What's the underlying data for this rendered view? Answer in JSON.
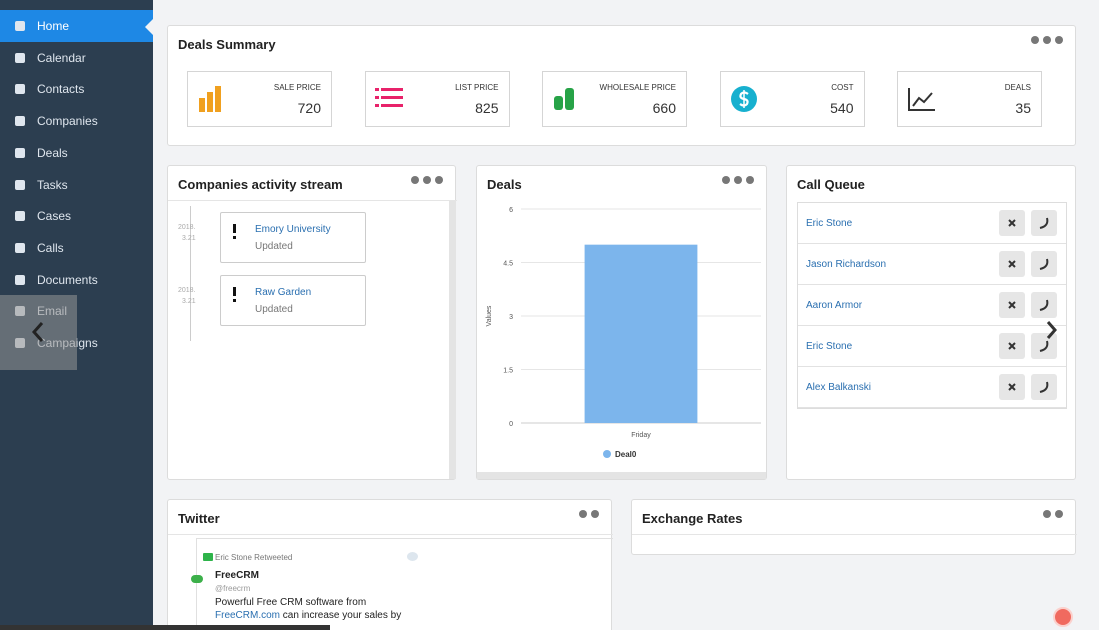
{
  "sidebar": {
    "items": [
      "Home",
      "Calendar",
      "Contacts",
      "Companies",
      "Deals",
      "Tasks",
      "Cases",
      "Calls",
      "Documents",
      "Email",
      "Campaigns"
    ]
  },
  "deals_summary": {
    "title": "Deals Summary",
    "cards": [
      {
        "label": "SALE PRICE",
        "value": "720"
      },
      {
        "label": "LIST PRICE",
        "value": "825"
      },
      {
        "label": "WHOLESALE PRICE",
        "value": "660"
      },
      {
        "label": "COST",
        "value": "540"
      },
      {
        "label": "DEALS",
        "value": "35"
      }
    ]
  },
  "activity": {
    "title": "Companies activity stream",
    "entries": [
      {
        "year": "2018.",
        "day": "3.21",
        "name": "Emory University",
        "status": "Updated"
      },
      {
        "year": "2018.",
        "day": "3.21",
        "name": "Raw Garden",
        "status": "Updated"
      }
    ]
  },
  "chart_data": {
    "type": "bar",
    "title": "Deals",
    "y_label": "Values",
    "categories": [
      "Friday"
    ],
    "series": [
      {
        "name": "Deal0",
        "color": "#7cb5ec",
        "values": [
          5
        ]
      }
    ],
    "ylim": [
      0,
      6
    ],
    "yticks": [
      0,
      1.5,
      3,
      4.5,
      6
    ],
    "grid": true
  },
  "call_queue": {
    "title": "Call Queue",
    "names": [
      "Eric Stone",
      "Jason Richardson",
      "Aaron Armor",
      "Eric Stone",
      "Alex Balkanski"
    ]
  },
  "twitter": {
    "title": "Twitter",
    "retweeted": "Eric Stone Retweeted",
    "name": "FreeCRM",
    "handle": "@freecrm",
    "line1": "Powerful Free CRM software from",
    "link": "FreeCRM.com",
    "line2": "can increase your sales by"
  },
  "exchange_rates": {
    "title": "Exchange Rates"
  }
}
